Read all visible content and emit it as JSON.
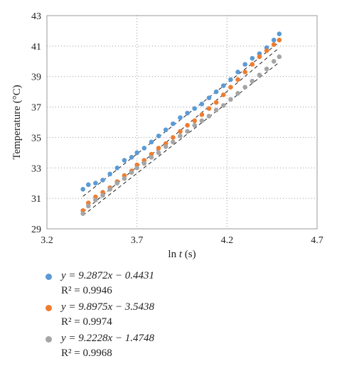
{
  "chart_data": {
    "type": "scatter",
    "xlabel_prefix": "ln",
    "xlabel_var": "t",
    "xlabel_unit": " (s)",
    "ylabel": "Temperature (°C)",
    "xlim": [
      3.2,
      4.7
    ],
    "ylim": [
      29,
      43
    ],
    "xticks": [
      "3.2",
      "3.7",
      "4.2",
      "4.7"
    ],
    "yticks": [
      "29",
      "31",
      "33",
      "35",
      "37",
      "39",
      "41",
      "43"
    ],
    "grid": "dotted",
    "legend_position": "bottom",
    "series": [
      {
        "color": "#5b9bd5",
        "equation_prefix": "y = 9.2872x − 0.4431",
        "r2_label": "R² = 0.9946",
        "fit": {
          "slope": 9.2872,
          "intercept": -0.4431
        },
        "x": [
          3.4,
          3.43,
          3.47,
          3.51,
          3.55,
          3.59,
          3.63,
          3.67,
          3.7,
          3.74,
          3.78,
          3.82,
          3.86,
          3.9,
          3.94,
          3.98,
          4.02,
          4.06,
          4.1,
          4.14,
          4.18,
          4.22,
          4.26,
          4.3,
          4.34,
          4.38,
          4.42,
          4.46,
          4.49
        ],
        "y": [
          31.6,
          31.9,
          32.0,
          32.2,
          32.6,
          33.0,
          33.5,
          33.7,
          34.0,
          34.3,
          34.7,
          35.1,
          35.5,
          35.9,
          36.3,
          36.6,
          36.9,
          37.2,
          37.6,
          38.0,
          38.4,
          38.8,
          39.3,
          39.8,
          40.2,
          40.5,
          40.9,
          41.4,
          41.8
        ]
      },
      {
        "color": "#ed7d31",
        "equation_prefix": "y = 9.8975x − 3.5438",
        "r2_label": "R² = 0.9974",
        "fit": {
          "slope": 9.8975,
          "intercept": -3.5438
        },
        "x": [
          3.4,
          3.43,
          3.47,
          3.51,
          3.55,
          3.59,
          3.63,
          3.67,
          3.7,
          3.74,
          3.78,
          3.82,
          3.86,
          3.9,
          3.94,
          3.98,
          4.02,
          4.06,
          4.1,
          4.14,
          4.18,
          4.22,
          4.26,
          4.3,
          4.34,
          4.38,
          4.42,
          4.46,
          4.49
        ],
        "y": [
          30.2,
          30.7,
          31.1,
          31.4,
          31.7,
          32.1,
          32.5,
          32.8,
          33.2,
          33.5,
          33.9,
          34.3,
          34.6,
          35.0,
          35.4,
          35.8,
          36.1,
          36.5,
          36.9,
          37.3,
          37.8,
          38.3,
          38.8,
          39.3,
          39.8,
          40.3,
          40.7,
          41.1,
          41.4
        ]
      },
      {
        "color": "#a5a5a5",
        "equation_prefix": "y = 9.2228x − 1.4748",
        "r2_label": "R² = 0.9968",
        "fit": {
          "slope": 9.2228,
          "intercept": -1.4748
        },
        "x": [
          3.4,
          3.43,
          3.47,
          3.51,
          3.55,
          3.59,
          3.63,
          3.67,
          3.7,
          3.74,
          3.78,
          3.82,
          3.86,
          3.9,
          3.94,
          3.98,
          4.02,
          4.06,
          4.1,
          4.14,
          4.18,
          4.22,
          4.26,
          4.3,
          4.34,
          4.38,
          4.42,
          4.46,
          4.49
        ],
        "y": [
          30.0,
          30.5,
          30.9,
          31.2,
          31.6,
          32.0,
          32.3,
          32.7,
          33.0,
          33.3,
          33.7,
          34.0,
          34.4,
          34.7,
          35.1,
          35.4,
          35.8,
          36.1,
          36.4,
          36.8,
          37.1,
          37.5,
          37.9,
          38.3,
          38.7,
          39.1,
          39.5,
          40.0,
          40.3
        ]
      }
    ]
  }
}
